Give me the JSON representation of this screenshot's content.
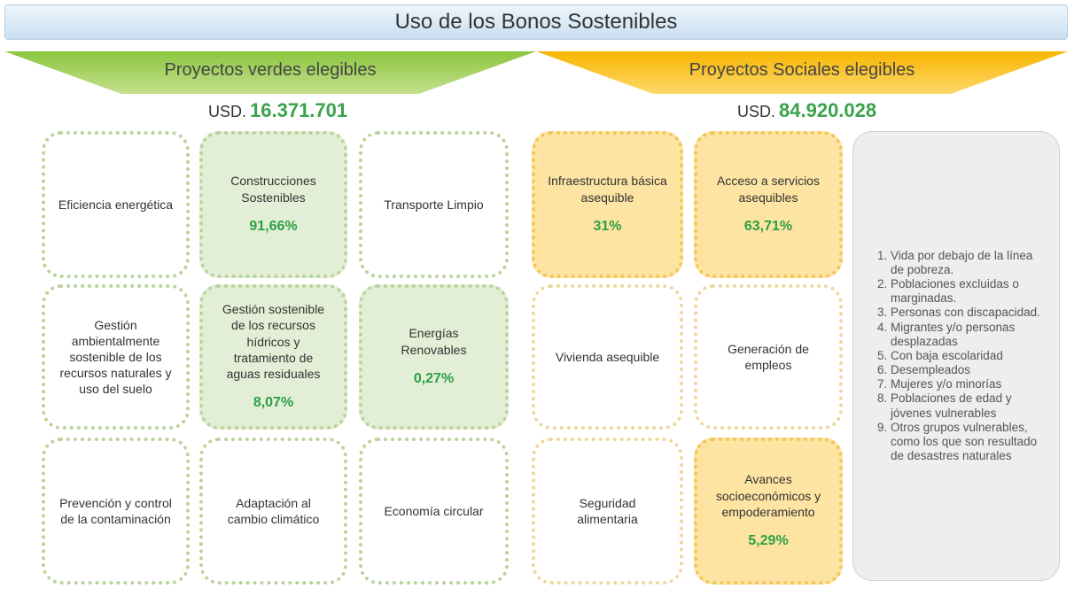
{
  "title": "Uso  de los Bonos Sostenibles",
  "green": {
    "header": "Proyectos verdes elegibles",
    "currency": "USD.",
    "amount": "16.371.701",
    "boxes": [
      {
        "label": "Eficiencia energética"
      },
      {
        "label": "Construcciones Sostenibles",
        "percent": "91,66%"
      },
      {
        "label": "Transporte Limpio"
      },
      {
        "label": "Gestión ambientalmente sostenible de los recursos naturales y uso del suelo"
      },
      {
        "label": "Gestión sostenible de los recursos hídricos y tratamiento de aguas residuales",
        "percent": "8,07%"
      },
      {
        "label": "Energías Renovables",
        "percent": "0,27%"
      },
      {
        "label": "Prevención y control de la contaminación"
      },
      {
        "label": "Adaptación al cambio climático"
      },
      {
        "label": "Economía circular"
      }
    ]
  },
  "social": {
    "header": "Proyectos Sociales elegibles",
    "currency": "USD.",
    "amount": "84.920.028",
    "boxes": [
      {
        "label": "Infraestructura básica asequible",
        "percent": "31%"
      },
      {
        "label": "Acceso a servicios asequibles",
        "percent": "63,71%"
      },
      {
        "label": "Vivienda asequible"
      },
      {
        "label": "Generación de empleos"
      },
      {
        "label": "Seguridad alimentaria"
      },
      {
        "label": "Avances socioeconómicos y empoderamiento",
        "percent": "5,29%"
      }
    ],
    "populations": [
      "Vida por debajo de la línea de pobreza.",
      "Poblaciones excluidas o marginadas.",
      "Personas con discapacidad.",
      "Migrantes y/o personas desplazadas",
      "Con baja escolaridad",
      "Desempleados",
      "Mujeres y/o minorías",
      "Poblaciones de edad y jóvenes vulnerables",
      "Otros grupos vulnerables, como los que son resultado de desastres naturales"
    ]
  }
}
